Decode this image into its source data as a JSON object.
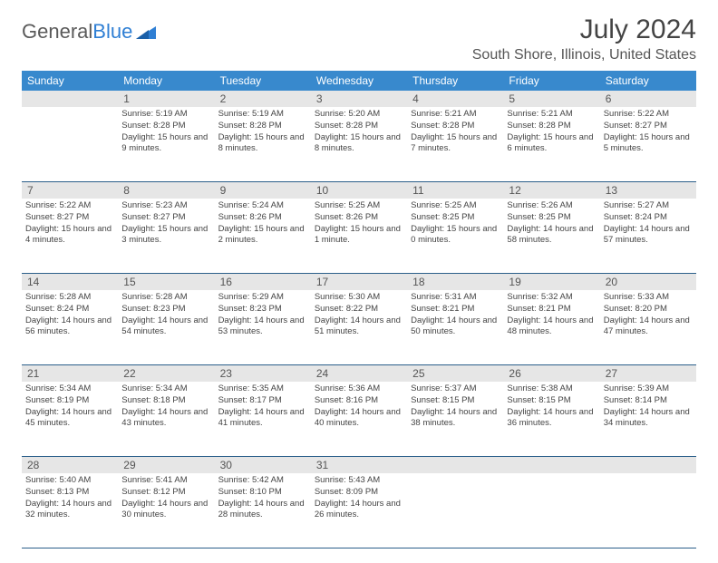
{
  "logo": {
    "text1": "General",
    "text2": "Blue"
  },
  "title": "July 2024",
  "subtitle": "South Shore, Illinois, United States",
  "colors": {
    "header_bg": "#3889CD",
    "header_text": "#ffffff",
    "daynum_bg": "#e6e6e6",
    "border": "#2b5f8a",
    "text": "#444444",
    "logo_gray": "#5a5a5a",
    "logo_blue": "#2F7FD4"
  },
  "day_names": [
    "Sunday",
    "Monday",
    "Tuesday",
    "Wednesday",
    "Thursday",
    "Friday",
    "Saturday"
  ],
  "weeks": [
    {
      "nums": [
        "",
        "1",
        "2",
        "3",
        "4",
        "5",
        "6"
      ],
      "days": [
        null,
        {
          "sunrise": "5:19 AM",
          "sunset": "8:28 PM",
          "daylight": "15 hours and 9 minutes."
        },
        {
          "sunrise": "5:19 AM",
          "sunset": "8:28 PM",
          "daylight": "15 hours and 8 minutes."
        },
        {
          "sunrise": "5:20 AM",
          "sunset": "8:28 PM",
          "daylight": "15 hours and 8 minutes."
        },
        {
          "sunrise": "5:21 AM",
          "sunset": "8:28 PM",
          "daylight": "15 hours and 7 minutes."
        },
        {
          "sunrise": "5:21 AM",
          "sunset": "8:28 PM",
          "daylight": "15 hours and 6 minutes."
        },
        {
          "sunrise": "5:22 AM",
          "sunset": "8:27 PM",
          "daylight": "15 hours and 5 minutes."
        }
      ]
    },
    {
      "nums": [
        "7",
        "8",
        "9",
        "10",
        "11",
        "12",
        "13"
      ],
      "days": [
        {
          "sunrise": "5:22 AM",
          "sunset": "8:27 PM",
          "daylight": "15 hours and 4 minutes."
        },
        {
          "sunrise": "5:23 AM",
          "sunset": "8:27 PM",
          "daylight": "15 hours and 3 minutes."
        },
        {
          "sunrise": "5:24 AM",
          "sunset": "8:26 PM",
          "daylight": "15 hours and 2 minutes."
        },
        {
          "sunrise": "5:25 AM",
          "sunset": "8:26 PM",
          "daylight": "15 hours and 1 minute."
        },
        {
          "sunrise": "5:25 AM",
          "sunset": "8:25 PM",
          "daylight": "15 hours and 0 minutes."
        },
        {
          "sunrise": "5:26 AM",
          "sunset": "8:25 PM",
          "daylight": "14 hours and 58 minutes."
        },
        {
          "sunrise": "5:27 AM",
          "sunset": "8:24 PM",
          "daylight": "14 hours and 57 minutes."
        }
      ]
    },
    {
      "nums": [
        "14",
        "15",
        "16",
        "17",
        "18",
        "19",
        "20"
      ],
      "days": [
        {
          "sunrise": "5:28 AM",
          "sunset": "8:24 PM",
          "daylight": "14 hours and 56 minutes."
        },
        {
          "sunrise": "5:28 AM",
          "sunset": "8:23 PM",
          "daylight": "14 hours and 54 minutes."
        },
        {
          "sunrise": "5:29 AM",
          "sunset": "8:23 PM",
          "daylight": "14 hours and 53 minutes."
        },
        {
          "sunrise": "5:30 AM",
          "sunset": "8:22 PM",
          "daylight": "14 hours and 51 minutes."
        },
        {
          "sunrise": "5:31 AM",
          "sunset": "8:21 PM",
          "daylight": "14 hours and 50 minutes."
        },
        {
          "sunrise": "5:32 AM",
          "sunset": "8:21 PM",
          "daylight": "14 hours and 48 minutes."
        },
        {
          "sunrise": "5:33 AM",
          "sunset": "8:20 PM",
          "daylight": "14 hours and 47 minutes."
        }
      ]
    },
    {
      "nums": [
        "21",
        "22",
        "23",
        "24",
        "25",
        "26",
        "27"
      ],
      "days": [
        {
          "sunrise": "5:34 AM",
          "sunset": "8:19 PM",
          "daylight": "14 hours and 45 minutes."
        },
        {
          "sunrise": "5:34 AM",
          "sunset": "8:18 PM",
          "daylight": "14 hours and 43 minutes."
        },
        {
          "sunrise": "5:35 AM",
          "sunset": "8:17 PM",
          "daylight": "14 hours and 41 minutes."
        },
        {
          "sunrise": "5:36 AM",
          "sunset": "8:16 PM",
          "daylight": "14 hours and 40 minutes."
        },
        {
          "sunrise": "5:37 AM",
          "sunset": "8:15 PM",
          "daylight": "14 hours and 38 minutes."
        },
        {
          "sunrise": "5:38 AM",
          "sunset": "8:15 PM",
          "daylight": "14 hours and 36 minutes."
        },
        {
          "sunrise": "5:39 AM",
          "sunset": "8:14 PM",
          "daylight": "14 hours and 34 minutes."
        }
      ]
    },
    {
      "nums": [
        "28",
        "29",
        "30",
        "31",
        "",
        "",
        ""
      ],
      "days": [
        {
          "sunrise": "5:40 AM",
          "sunset": "8:13 PM",
          "daylight": "14 hours and 32 minutes."
        },
        {
          "sunrise": "5:41 AM",
          "sunset": "8:12 PM",
          "daylight": "14 hours and 30 minutes."
        },
        {
          "sunrise": "5:42 AM",
          "sunset": "8:10 PM",
          "daylight": "14 hours and 28 minutes."
        },
        {
          "sunrise": "5:43 AM",
          "sunset": "8:09 PM",
          "daylight": "14 hours and 26 minutes."
        },
        null,
        null,
        null
      ]
    }
  ],
  "labels": {
    "sunrise": "Sunrise:",
    "sunset": "Sunset:",
    "daylight": "Daylight:"
  }
}
